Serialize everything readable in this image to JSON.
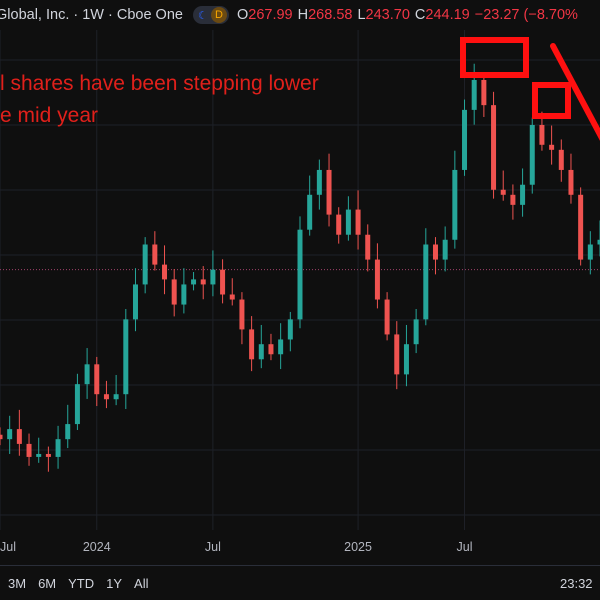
{
  "header": {
    "symbol": "Global, Inc. · 1W · Cboe One",
    "moon_icon": "moon-icon",
    "d_badge": "D",
    "o_label": "O",
    "o_value": "267.99",
    "h_label": "H",
    "h_value": "268.58",
    "l_label": "L",
    "l_value": "243.70",
    "c_label": "C",
    "c_value": "244.19",
    "change": "−23.27 (−8.70%"
  },
  "annotation": {
    "line1": "l shares have been stepping lower",
    "line2": "e mid year",
    "color": "#e0201b"
  },
  "range_buttons": [
    "3M",
    "6M",
    "YTD",
    "1Y",
    "All"
  ],
  "clock": "23:32",
  "colors": {
    "up": "#26a69a",
    "down": "#ef5350",
    "background": "#0f0f0f",
    "grid": "#1e2128"
  },
  "chart_data": {
    "type": "candlestick",
    "interval": "1W",
    "ylim": [
      106,
      275
    ],
    "grid": true,
    "x_ticks": [
      {
        "label": "Jul",
        "index": 0
      },
      {
        "label": "2024",
        "index": 10
      },
      {
        "label": "Jul",
        "index": 22
      },
      {
        "label": "2025",
        "index": 37
      },
      {
        "label": "Jul",
        "index": 48
      }
    ],
    "current_price_line": 194,
    "closes": [
      136.7,
      140.1,
      135.1,
      130.7,
      131.7,
      130.7,
      136.7,
      141.8,
      155.3,
      162.0,
      151.9,
      150.2,
      151.9,
      177.2,
      189.0,
      202.5,
      195.7,
      190.7,
      182.2,
      189.0,
      190.7,
      189.0,
      194.0,
      185.6,
      183.9,
      173.8,
      163.7,
      168.8,
      165.4,
      170.4,
      177.2,
      207.5,
      219.3,
      227.7,
      212.6,
      205.8,
      214.3,
      205.8,
      197.4,
      183.9,
      172.1,
      158.6,
      168.8,
      177.2,
      202.5,
      197.4,
      204.1,
      227.7,
      248.0,
      258.1,
      249.6,
      221.0,
      219.3,
      215.9,
      222.7,
      242.9,
      236.2,
      234.5,
      227.7,
      219.3,
      197.4,
      202.5,
      204.1
    ]
  }
}
